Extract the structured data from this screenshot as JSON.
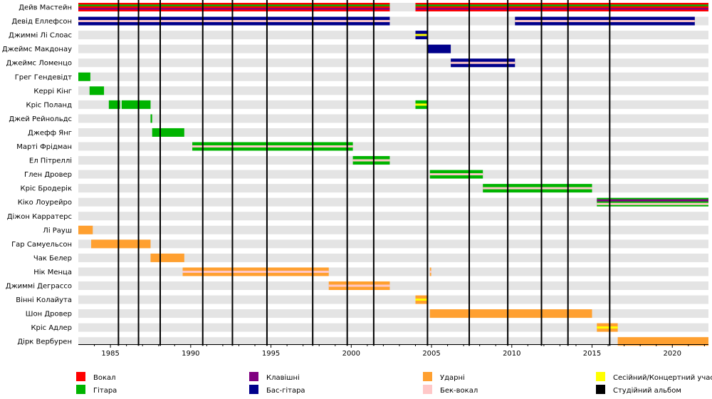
{
  "chart_data": {
    "type": "bar",
    "title": "",
    "xlabel": "",
    "ylabel": "",
    "xlim": [
      1983.0,
      2022.25
    ],
    "x_ticks": [
      "1985",
      "1990",
      "1995",
      "2000",
      "2005",
      "2010",
      "2015",
      "2020"
    ],
    "members": [
      "Дейв Мастейн",
      "Девід Еллефсон",
      "Джиммі Лі Слоас",
      "Джеймс Макдонау",
      "Джеймс Ломенцо",
      "Грег Гендевідт",
      "Керрі Кінг",
      "Кріс Поланд",
      "Джей Рейнольдс",
      "Джефф Янг",
      "Марті Фрідман",
      "Ел Пітреллі",
      "Глен Дровер",
      "Кріс Бродерік",
      "Кіко Лоурейро",
      "Діжон Карратерс",
      "Лі Рауш",
      "Гар Самуельсон",
      "Чак Белер",
      "Нік Менца",
      "Джиммі Деграссо",
      "Вінні Колайута",
      "Шон Дровер",
      "Кріс Адлер",
      "Дірк Вербурен"
    ],
    "bars": [
      {
        "member": 0,
        "start": 1983.0,
        "end": 2002.4,
        "roles": [
          "vocals",
          "guitar",
          "keys"
        ]
      },
      {
        "member": 0,
        "start": 2004.0,
        "end": 2022.25,
        "roles": [
          "vocals",
          "guitar",
          "keys"
        ]
      },
      {
        "member": 1,
        "start": 1983.0,
        "end": 2002.4,
        "roles": [
          "bass",
          "backing"
        ]
      },
      {
        "member": 1,
        "start": 2010.2,
        "end": 2021.4,
        "roles": [
          "bass",
          "backing"
        ]
      },
      {
        "member": 2,
        "start": 2004.0,
        "end": 2004.75,
        "roles": [
          "bass",
          "session"
        ]
      },
      {
        "member": 3,
        "start": 2004.75,
        "end": 2006.2,
        "roles": [
          "bass"
        ]
      },
      {
        "member": 4,
        "start": 2006.2,
        "end": 2010.2,
        "roles": [
          "bass",
          "backing"
        ]
      },
      {
        "member": 5,
        "start": 1983.0,
        "end": 1983.75,
        "roles": [
          "guitar"
        ]
      },
      {
        "member": 6,
        "start": 1983.7,
        "end": 1984.6,
        "roles": [
          "guitar"
        ]
      },
      {
        "member": 7,
        "start": 1984.9,
        "end": 1985.6,
        "roles": [
          "guitar"
        ]
      },
      {
        "member": 7,
        "start": 1985.7,
        "end": 1987.5,
        "roles": [
          "guitar"
        ]
      },
      {
        "member": 7,
        "start": 2004.0,
        "end": 2004.75,
        "roles": [
          "guitar",
          "session"
        ]
      },
      {
        "member": 8,
        "start": 1987.5,
        "end": 1987.6,
        "roles": [
          "guitar"
        ]
      },
      {
        "member": 9,
        "start": 1987.6,
        "end": 1989.6,
        "roles": [
          "guitar"
        ]
      },
      {
        "member": 10,
        "start": 1990.1,
        "end": 2000.1,
        "roles": [
          "guitar",
          "backing"
        ]
      },
      {
        "member": 11,
        "start": 2000.1,
        "end": 2002.4,
        "roles": [
          "guitar",
          "backing"
        ]
      },
      {
        "member": 12,
        "start": 2004.9,
        "end": 2008.2,
        "roles": [
          "guitar",
          "backing"
        ]
      },
      {
        "member": 13,
        "start": 2008.2,
        "end": 2015.0,
        "roles": [
          "guitar",
          "backing"
        ]
      },
      {
        "member": 14,
        "start": 2015.3,
        "end": 2022.25,
        "roles": [
          "guitar",
          "keys",
          "backing"
        ]
      },
      {
        "member": 16,
        "start": 1983.0,
        "end": 1983.9,
        "roles": [
          "drums"
        ]
      },
      {
        "member": 17,
        "start": 1983.8,
        "end": 1987.5,
        "roles": [
          "drums"
        ]
      },
      {
        "member": 18,
        "start": 1987.5,
        "end": 1989.6,
        "roles": [
          "drums"
        ]
      },
      {
        "member": 19,
        "start": 1989.5,
        "end": 1998.6,
        "roles": [
          "drums",
          "backing"
        ]
      },
      {
        "member": 19,
        "start": 2004.9,
        "end": 2004.98,
        "roles": [
          "drums",
          "backing"
        ]
      },
      {
        "member": 20,
        "start": 1998.6,
        "end": 2002.4,
        "roles": [
          "drums",
          "backing"
        ]
      },
      {
        "member": 21,
        "start": 2004.0,
        "end": 2004.75,
        "roles": [
          "drums",
          "session"
        ]
      },
      {
        "member": 22,
        "start": 2004.9,
        "end": 2015.0,
        "roles": [
          "drums"
        ]
      },
      {
        "member": 23,
        "start": 2015.3,
        "end": 2016.6,
        "roles": [
          "drums",
          "session"
        ]
      },
      {
        "member": 24,
        "start": 2016.6,
        "end": 2022.25,
        "roles": [
          "drums"
        ]
      }
    ],
    "albums": [
      1985.5,
      1986.75,
      1988.1,
      1990.75,
      1992.6,
      1994.75,
      1997.6,
      1999.75,
      2001.4,
      2004.75,
      2007.35,
      2009.75,
      2011.85,
      2013.5,
      2016.1
    ],
    "legend_position": "bottom",
    "legend": [
      {
        "key": "vocals",
        "label": "Вокал",
        "color": "#ff0000"
      },
      {
        "key": "guitar",
        "label": "Гітара",
        "color": "#00b400"
      },
      {
        "key": "keys",
        "label": "Клавішні",
        "color": "#800080"
      },
      {
        "key": "bass",
        "label": "Бас-гітара",
        "color": "#00008b"
      },
      {
        "key": "drums",
        "label": "Ударні",
        "color": "#ffa030"
      },
      {
        "key": "backing",
        "label": "Бек-вокал",
        "color": "#ffc8c8"
      },
      {
        "key": "session",
        "label": "Сесійний/Концертний учасник",
        "color": "#ffff00"
      },
      {
        "key": "album",
        "label": "Студійний альбом",
        "color": "#000000"
      }
    ],
    "grid": "horizontal-stripes"
  }
}
